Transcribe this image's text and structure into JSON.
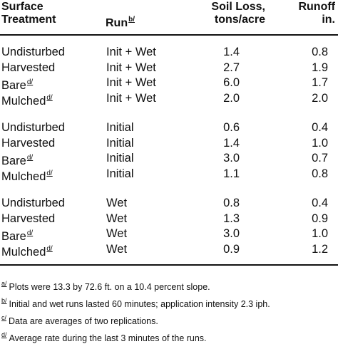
{
  "headers": {
    "treatment": [
      "Surface",
      "Treatment"
    ],
    "run": "Run",
    "run_footnote": "b/",
    "soil_loss": [
      "Soil Loss,",
      "tons/acre"
    ],
    "runoff": [
      "Runoff",
      "in."
    ]
  },
  "groups": [
    {
      "rows": [
        {
          "treatment": "Undisturbed",
          "fn": "",
          "run": "Init + Wet",
          "soil": "1.4",
          "runoff": "0.8"
        },
        {
          "treatment": "Harvested",
          "fn": "",
          "run": "Init + Wet",
          "soil": "2.7",
          "runoff": "1.9"
        },
        {
          "treatment": "Bare",
          "fn": "d/",
          "run": "Init + Wet",
          "soil": "6.0",
          "runoff": "1.7"
        },
        {
          "treatment": "Mulched",
          "fn": "d/",
          "run": "Init + Wet",
          "soil": "2.0",
          "runoff": "2.0"
        }
      ]
    },
    {
      "rows": [
        {
          "treatment": "Undisturbed",
          "fn": "",
          "run": "Initial",
          "soil": "0.6",
          "runoff": "0.4"
        },
        {
          "treatment": "Harvested",
          "fn": "",
          "run": "Initial",
          "soil": "1.4",
          "runoff": "1.0"
        },
        {
          "treatment": "Bare",
          "fn": "d/",
          "run": "Initial",
          "soil": "3.0",
          "runoff": "0.7"
        },
        {
          "treatment": "Mulched",
          "fn": "d/",
          "run": "Initial",
          "soil": "1.1",
          "runoff": "0.8"
        }
      ]
    },
    {
      "rows": [
        {
          "treatment": "Undisturbed",
          "fn": "",
          "run": "Wet",
          "soil": "0.8",
          "runoff": "0.4"
        },
        {
          "treatment": "Harvested",
          "fn": "",
          "run": "Wet",
          "soil": "1.3",
          "runoff": "0.9"
        },
        {
          "treatment": "Bare",
          "fn": "d/",
          "run": "Wet",
          "soil": "3.0",
          "runoff": "1.0"
        },
        {
          "treatment": "Mulched",
          "fn": "d/",
          "run": "Wet",
          "soil": "0.9",
          "runoff": "1.2"
        }
      ]
    }
  ],
  "footnotes": [
    {
      "mark": "a/",
      "text": "Plots were 13.3 by 72.6 ft. on a 10.4 percent slope."
    },
    {
      "mark": "b/",
      "text": "Initial and wet runs lasted 60 minutes; application intensity 2.3 iph."
    },
    {
      "mark": "c/",
      "text": "Data are averages of two replications."
    },
    {
      "mark": "d/",
      "text": "Average rate during the last 3 minutes of the runs."
    }
  ]
}
